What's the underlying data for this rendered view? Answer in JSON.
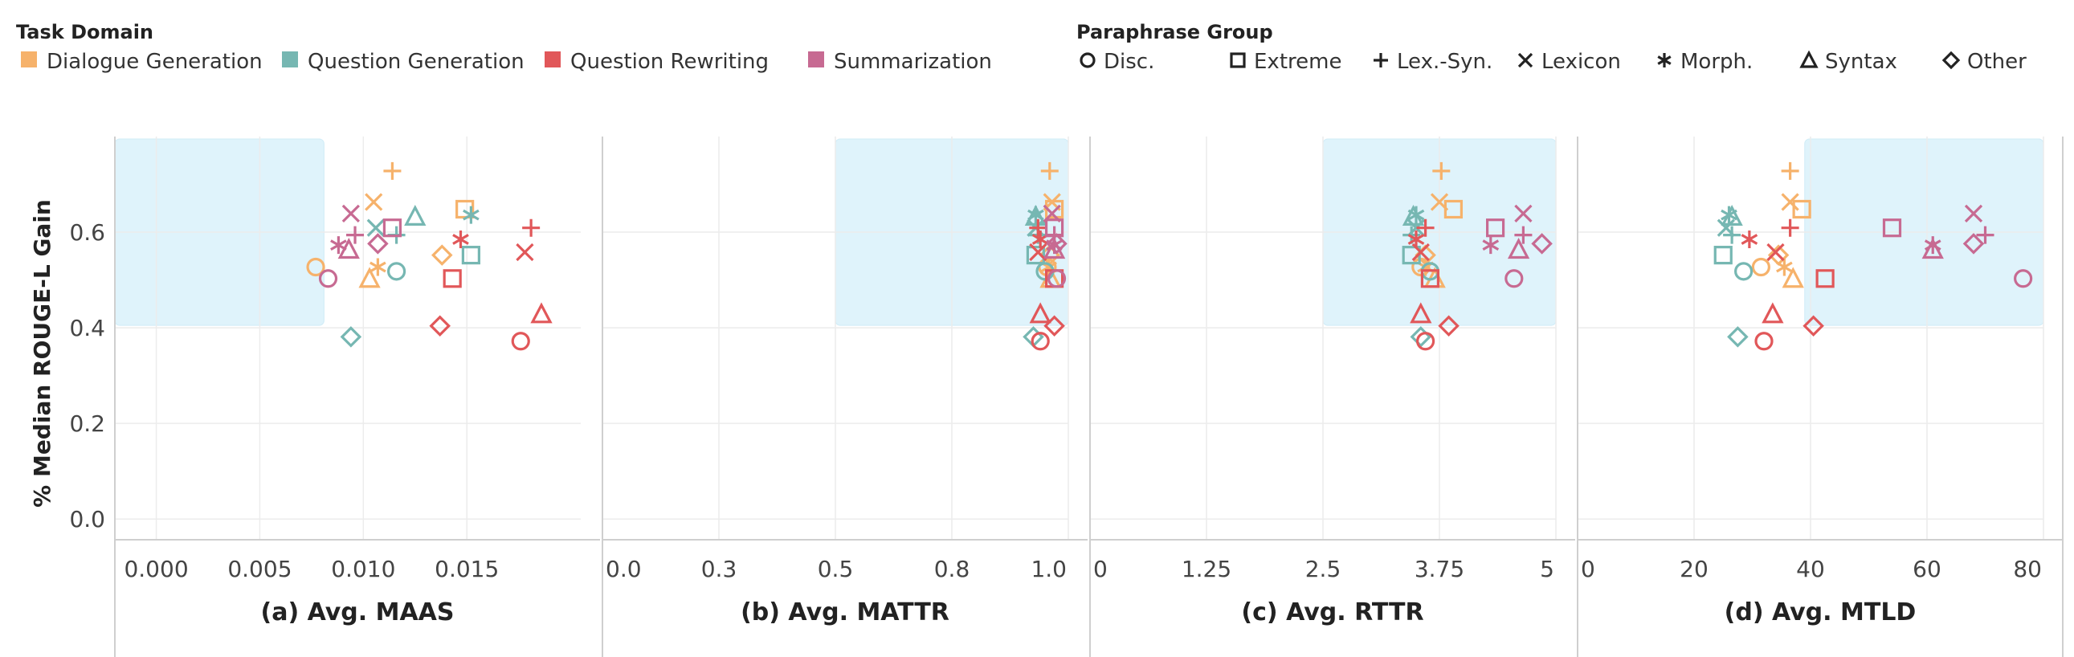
{
  "legend": {
    "domain_title": "Task Domain",
    "domains": [
      {
        "name": "Dialogue Generation",
        "color": "#F6B26B"
      },
      {
        "name": "Question Generation",
        "color": "#76B7B2"
      },
      {
        "name": "Question Rewriting",
        "color": "#E15759"
      },
      {
        "name": "Summarization",
        "color": "#C76A92"
      }
    ],
    "group_title": "Paraphrase Group",
    "groups": [
      {
        "name": "Disc.",
        "symbol": "circle"
      },
      {
        "name": "Extreme",
        "symbol": "square"
      },
      {
        "name": "Lex.-Syn.",
        "symbol": "plus"
      },
      {
        "name": "Lexicon",
        "symbol": "x"
      },
      {
        "name": "Morph.",
        "symbol": "asterisk"
      },
      {
        "name": "Syntax",
        "symbol": "triangle"
      },
      {
        "name": "Other",
        "symbol": "diamond"
      }
    ]
  },
  "ylabel": "% Median ROUGE-L Gain",
  "chart_data": [
    {
      "type": "scatter",
      "xlabel": "(a) Avg. MAAS",
      "xlim": [
        -0.002,
        0.0205
      ],
      "xticks": [
        "0.000",
        "0.005",
        "0.010",
        "0.015"
      ],
      "xtick_values": [
        0,
        0.005,
        0.01,
        0.015
      ],
      "ylim": [
        -0.04,
        0.8
      ],
      "yticks": [
        "0.0",
        "0.2",
        "0.4",
        "0.6"
      ],
      "ytick_values": [
        0,
        0.2,
        0.4,
        0.6
      ],
      "highlight": {
        "x": [
          -0.002,
          0.0081
        ],
        "y": [
          0.405,
          0.795
        ]
      },
      "points": [
        {
          "d": 0,
          "g": 0,
          "x": 0.0077,
          "y": 0.527
        },
        {
          "d": 0,
          "g": 1,
          "x": 0.0149,
          "y": 0.648
        },
        {
          "d": 0,
          "g": 2,
          "x": 0.0114,
          "y": 0.728
        },
        {
          "d": 0,
          "g": 3,
          "x": 0.0105,
          "y": 0.663
        },
        {
          "d": 0,
          "g": 4,
          "x": 0.0107,
          "y": 0.527
        },
        {
          "d": 0,
          "g": 5,
          "x": 0.0103,
          "y": 0.503
        },
        {
          "d": 0,
          "g": 6,
          "x": 0.0138,
          "y": 0.552
        },
        {
          "d": 1,
          "g": 0,
          "x": 0.0116,
          "y": 0.518
        },
        {
          "d": 1,
          "g": 1,
          "x": 0.0152,
          "y": 0.552
        },
        {
          "d": 1,
          "g": 2,
          "x": 0.0116,
          "y": 0.594
        },
        {
          "d": 1,
          "g": 3,
          "x": 0.0106,
          "y": 0.609
        },
        {
          "d": 1,
          "g": 4,
          "x": 0.0152,
          "y": 0.636
        },
        {
          "d": 1,
          "g": 5,
          "x": 0.0125,
          "y": 0.633
        },
        {
          "d": 1,
          "g": 6,
          "x": 0.0094,
          "y": 0.381
        },
        {
          "d": 2,
          "g": 0,
          "x": 0.0176,
          "y": 0.372
        },
        {
          "d": 2,
          "g": 1,
          "x": 0.0143,
          "y": 0.503
        },
        {
          "d": 2,
          "g": 2,
          "x": 0.0181,
          "y": 0.609
        },
        {
          "d": 2,
          "g": 3,
          "x": 0.0178,
          "y": 0.558
        },
        {
          "d": 2,
          "g": 4,
          "x": 0.0147,
          "y": 0.585
        },
        {
          "d": 2,
          "g": 5,
          "x": 0.0186,
          "y": 0.429
        },
        {
          "d": 2,
          "g": 6,
          "x": 0.0137,
          "y": 0.404
        },
        {
          "d": 3,
          "g": 0,
          "x": 0.0083,
          "y": 0.503
        },
        {
          "d": 3,
          "g": 1,
          "x": 0.0114,
          "y": 0.609
        },
        {
          "d": 3,
          "g": 2,
          "x": 0.0096,
          "y": 0.594
        },
        {
          "d": 3,
          "g": 3,
          "x": 0.0094,
          "y": 0.639
        },
        {
          "d": 3,
          "g": 4,
          "x": 0.0088,
          "y": 0.573
        },
        {
          "d": 3,
          "g": 5,
          "x": 0.0093,
          "y": 0.564
        },
        {
          "d": 3,
          "g": 6,
          "x": 0.0107,
          "y": 0.576
        }
      ]
    },
    {
      "type": "scatter",
      "xlabel": "(b) Avg. MATTR",
      "xlim": [
        0,
        1.0
      ],
      "xticks": [
        "0.0",
        "0.3",
        "0.5",
        "0.8",
        "1.0"
      ],
      "xtick_values": [
        0,
        0.25,
        0.5,
        0.75,
        1.0
      ],
      "ylim": [
        -0.04,
        0.8
      ],
      "highlight": {
        "x": [
          0.5,
          1.0
        ],
        "y": [
          0.405,
          0.795
        ]
      },
      "points": [
        {
          "d": 0,
          "g": 0,
          "x": 0.955,
          "y": 0.527
        },
        {
          "d": 0,
          "g": 1,
          "x": 0.97,
          "y": 0.648
        },
        {
          "d": 0,
          "g": 2,
          "x": 0.96,
          "y": 0.728
        },
        {
          "d": 0,
          "g": 3,
          "x": 0.965,
          "y": 0.663
        },
        {
          "d": 0,
          "g": 4,
          "x": 0.958,
          "y": 0.527
        },
        {
          "d": 0,
          "g": 5,
          "x": 0.962,
          "y": 0.503
        },
        {
          "d": 0,
          "g": 6,
          "x": 0.96,
          "y": 0.552
        },
        {
          "d": 1,
          "g": 0,
          "x": 0.95,
          "y": 0.518
        },
        {
          "d": 1,
          "g": 1,
          "x": 0.93,
          "y": 0.552
        },
        {
          "d": 1,
          "g": 2,
          "x": 0.935,
          "y": 0.594
        },
        {
          "d": 1,
          "g": 3,
          "x": 0.93,
          "y": 0.609
        },
        {
          "d": 1,
          "g": 4,
          "x": 0.93,
          "y": 0.636
        },
        {
          "d": 1,
          "g": 5,
          "x": 0.93,
          "y": 0.633
        },
        {
          "d": 1,
          "g": 6,
          "x": 0.925,
          "y": 0.381
        },
        {
          "d": 2,
          "g": 0,
          "x": 0.94,
          "y": 0.372
        },
        {
          "d": 2,
          "g": 1,
          "x": 0.97,
          "y": 0.503
        },
        {
          "d": 2,
          "g": 2,
          "x": 0.935,
          "y": 0.609
        },
        {
          "d": 2,
          "g": 3,
          "x": 0.935,
          "y": 0.558
        },
        {
          "d": 2,
          "g": 4,
          "x": 0.94,
          "y": 0.585
        },
        {
          "d": 2,
          "g": 5,
          "x": 0.94,
          "y": 0.429
        },
        {
          "d": 2,
          "g": 6,
          "x": 0.97,
          "y": 0.404
        },
        {
          "d": 3,
          "g": 0,
          "x": 0.975,
          "y": 0.503
        },
        {
          "d": 3,
          "g": 1,
          "x": 0.97,
          "y": 0.609
        },
        {
          "d": 3,
          "g": 2,
          "x": 0.97,
          "y": 0.594
        },
        {
          "d": 3,
          "g": 3,
          "x": 0.965,
          "y": 0.639
        },
        {
          "d": 3,
          "g": 4,
          "x": 0.97,
          "y": 0.573
        },
        {
          "d": 3,
          "g": 5,
          "x": 0.97,
          "y": 0.564
        },
        {
          "d": 3,
          "g": 6,
          "x": 0.975,
          "y": 0.576
        }
      ]
    },
    {
      "type": "scatter",
      "xlabel": "(c) Avg. RTTR",
      "xlim": [
        0,
        5.0
      ],
      "xticks": [
        "0",
        "1.25",
        "2.5",
        "3.75",
        "5"
      ],
      "xtick_values": [
        0,
        1.25,
        2.5,
        3.75,
        5.0
      ],
      "ylim": [
        -0.04,
        0.8
      ],
      "highlight": {
        "x": [
          2.5,
          5.0
        ],
        "y": [
          0.405,
          0.795
        ]
      },
      "points": [
        {
          "d": 0,
          "g": 0,
          "x": 3.55,
          "y": 0.527
        },
        {
          "d": 0,
          "g": 1,
          "x": 3.9,
          "y": 0.648
        },
        {
          "d": 0,
          "g": 2,
          "x": 3.77,
          "y": 0.728
        },
        {
          "d": 0,
          "g": 3,
          "x": 3.75,
          "y": 0.663
        },
        {
          "d": 0,
          "g": 4,
          "x": 3.6,
          "y": 0.527
        },
        {
          "d": 0,
          "g": 5,
          "x": 3.7,
          "y": 0.503
        },
        {
          "d": 0,
          "g": 6,
          "x": 3.6,
          "y": 0.552
        },
        {
          "d": 1,
          "g": 0,
          "x": 3.65,
          "y": 0.518
        },
        {
          "d": 1,
          "g": 1,
          "x": 3.45,
          "y": 0.552
        },
        {
          "d": 1,
          "g": 2,
          "x": 3.45,
          "y": 0.594
        },
        {
          "d": 1,
          "g": 3,
          "x": 3.5,
          "y": 0.609
        },
        {
          "d": 1,
          "g": 4,
          "x": 3.5,
          "y": 0.636
        },
        {
          "d": 1,
          "g": 5,
          "x": 3.47,
          "y": 0.633
        },
        {
          "d": 1,
          "g": 6,
          "x": 3.55,
          "y": 0.381
        },
        {
          "d": 2,
          "g": 0,
          "x": 3.6,
          "y": 0.372
        },
        {
          "d": 2,
          "g": 1,
          "x": 3.65,
          "y": 0.503
        },
        {
          "d": 2,
          "g": 2,
          "x": 3.6,
          "y": 0.609
        },
        {
          "d": 2,
          "g": 3,
          "x": 3.55,
          "y": 0.558
        },
        {
          "d": 2,
          "g": 4,
          "x": 3.5,
          "y": 0.585
        },
        {
          "d": 2,
          "g": 5,
          "x": 3.55,
          "y": 0.429
        },
        {
          "d": 2,
          "g": 6,
          "x": 3.85,
          "y": 0.404
        },
        {
          "d": 3,
          "g": 0,
          "x": 4.55,
          "y": 0.503
        },
        {
          "d": 3,
          "g": 1,
          "x": 4.35,
          "y": 0.609
        },
        {
          "d": 3,
          "g": 2,
          "x": 4.65,
          "y": 0.594
        },
        {
          "d": 3,
          "g": 3,
          "x": 4.65,
          "y": 0.639
        },
        {
          "d": 3,
          "g": 4,
          "x": 4.3,
          "y": 0.573
        },
        {
          "d": 3,
          "g": 5,
          "x": 4.6,
          "y": 0.564
        },
        {
          "d": 3,
          "g": 6,
          "x": 4.85,
          "y": 0.576
        }
      ]
    },
    {
      "type": "scatter",
      "xlabel": "(d) Avg. MTLD",
      "xlim": [
        0,
        80
      ],
      "xticks": [
        "0",
        "20",
        "40",
        "60",
        "80"
      ],
      "xtick_values": [
        0,
        20,
        40,
        60,
        80
      ],
      "ylim": [
        -0.04,
        0.8
      ],
      "highlight": {
        "x": [
          39,
          80
        ],
        "y": [
          0.405,
          0.795
        ]
      },
      "points": [
        {
          "d": 0,
          "g": 0,
          "x": 31.5,
          "y": 0.527
        },
        {
          "d": 0,
          "g": 1,
          "x": 38.5,
          "y": 0.648
        },
        {
          "d": 0,
          "g": 2,
          "x": 36.5,
          "y": 0.728
        },
        {
          "d": 0,
          "g": 3,
          "x": 36.5,
          "y": 0.663
        },
        {
          "d": 0,
          "g": 4,
          "x": 35.5,
          "y": 0.527
        },
        {
          "d": 0,
          "g": 5,
          "x": 37,
          "y": 0.503
        },
        {
          "d": 0,
          "g": 6,
          "x": 34.5,
          "y": 0.552
        },
        {
          "d": 1,
          "g": 0,
          "x": 28.5,
          "y": 0.518
        },
        {
          "d": 1,
          "g": 1,
          "x": 25,
          "y": 0.552
        },
        {
          "d": 1,
          "g": 2,
          "x": 26.5,
          "y": 0.594
        },
        {
          "d": 1,
          "g": 3,
          "x": 25.5,
          "y": 0.609
        },
        {
          "d": 1,
          "g": 4,
          "x": 26,
          "y": 0.636
        },
        {
          "d": 1,
          "g": 5,
          "x": 26.5,
          "y": 0.633
        },
        {
          "d": 1,
          "g": 6,
          "x": 27.5,
          "y": 0.381
        },
        {
          "d": 2,
          "g": 0,
          "x": 32,
          "y": 0.372
        },
        {
          "d": 2,
          "g": 1,
          "x": 42.5,
          "y": 0.503
        },
        {
          "d": 2,
          "g": 2,
          "x": 36.5,
          "y": 0.609
        },
        {
          "d": 2,
          "g": 3,
          "x": 34,
          "y": 0.558
        },
        {
          "d": 2,
          "g": 4,
          "x": 29.5,
          "y": 0.585
        },
        {
          "d": 2,
          "g": 5,
          "x": 33.5,
          "y": 0.429
        },
        {
          "d": 2,
          "g": 6,
          "x": 40.5,
          "y": 0.404
        },
        {
          "d": 3,
          "g": 0,
          "x": 76.5,
          "y": 0.503
        },
        {
          "d": 3,
          "g": 1,
          "x": 54,
          "y": 0.609
        },
        {
          "d": 3,
          "g": 2,
          "x": 70,
          "y": 0.594
        },
        {
          "d": 3,
          "g": 3,
          "x": 68,
          "y": 0.639
        },
        {
          "d": 3,
          "g": 4,
          "x": 61,
          "y": 0.573
        },
        {
          "d": 3,
          "g": 5,
          "x": 61,
          "y": 0.564
        },
        {
          "d": 3,
          "g": 6,
          "x": 68,
          "y": 0.576
        }
      ]
    }
  ]
}
